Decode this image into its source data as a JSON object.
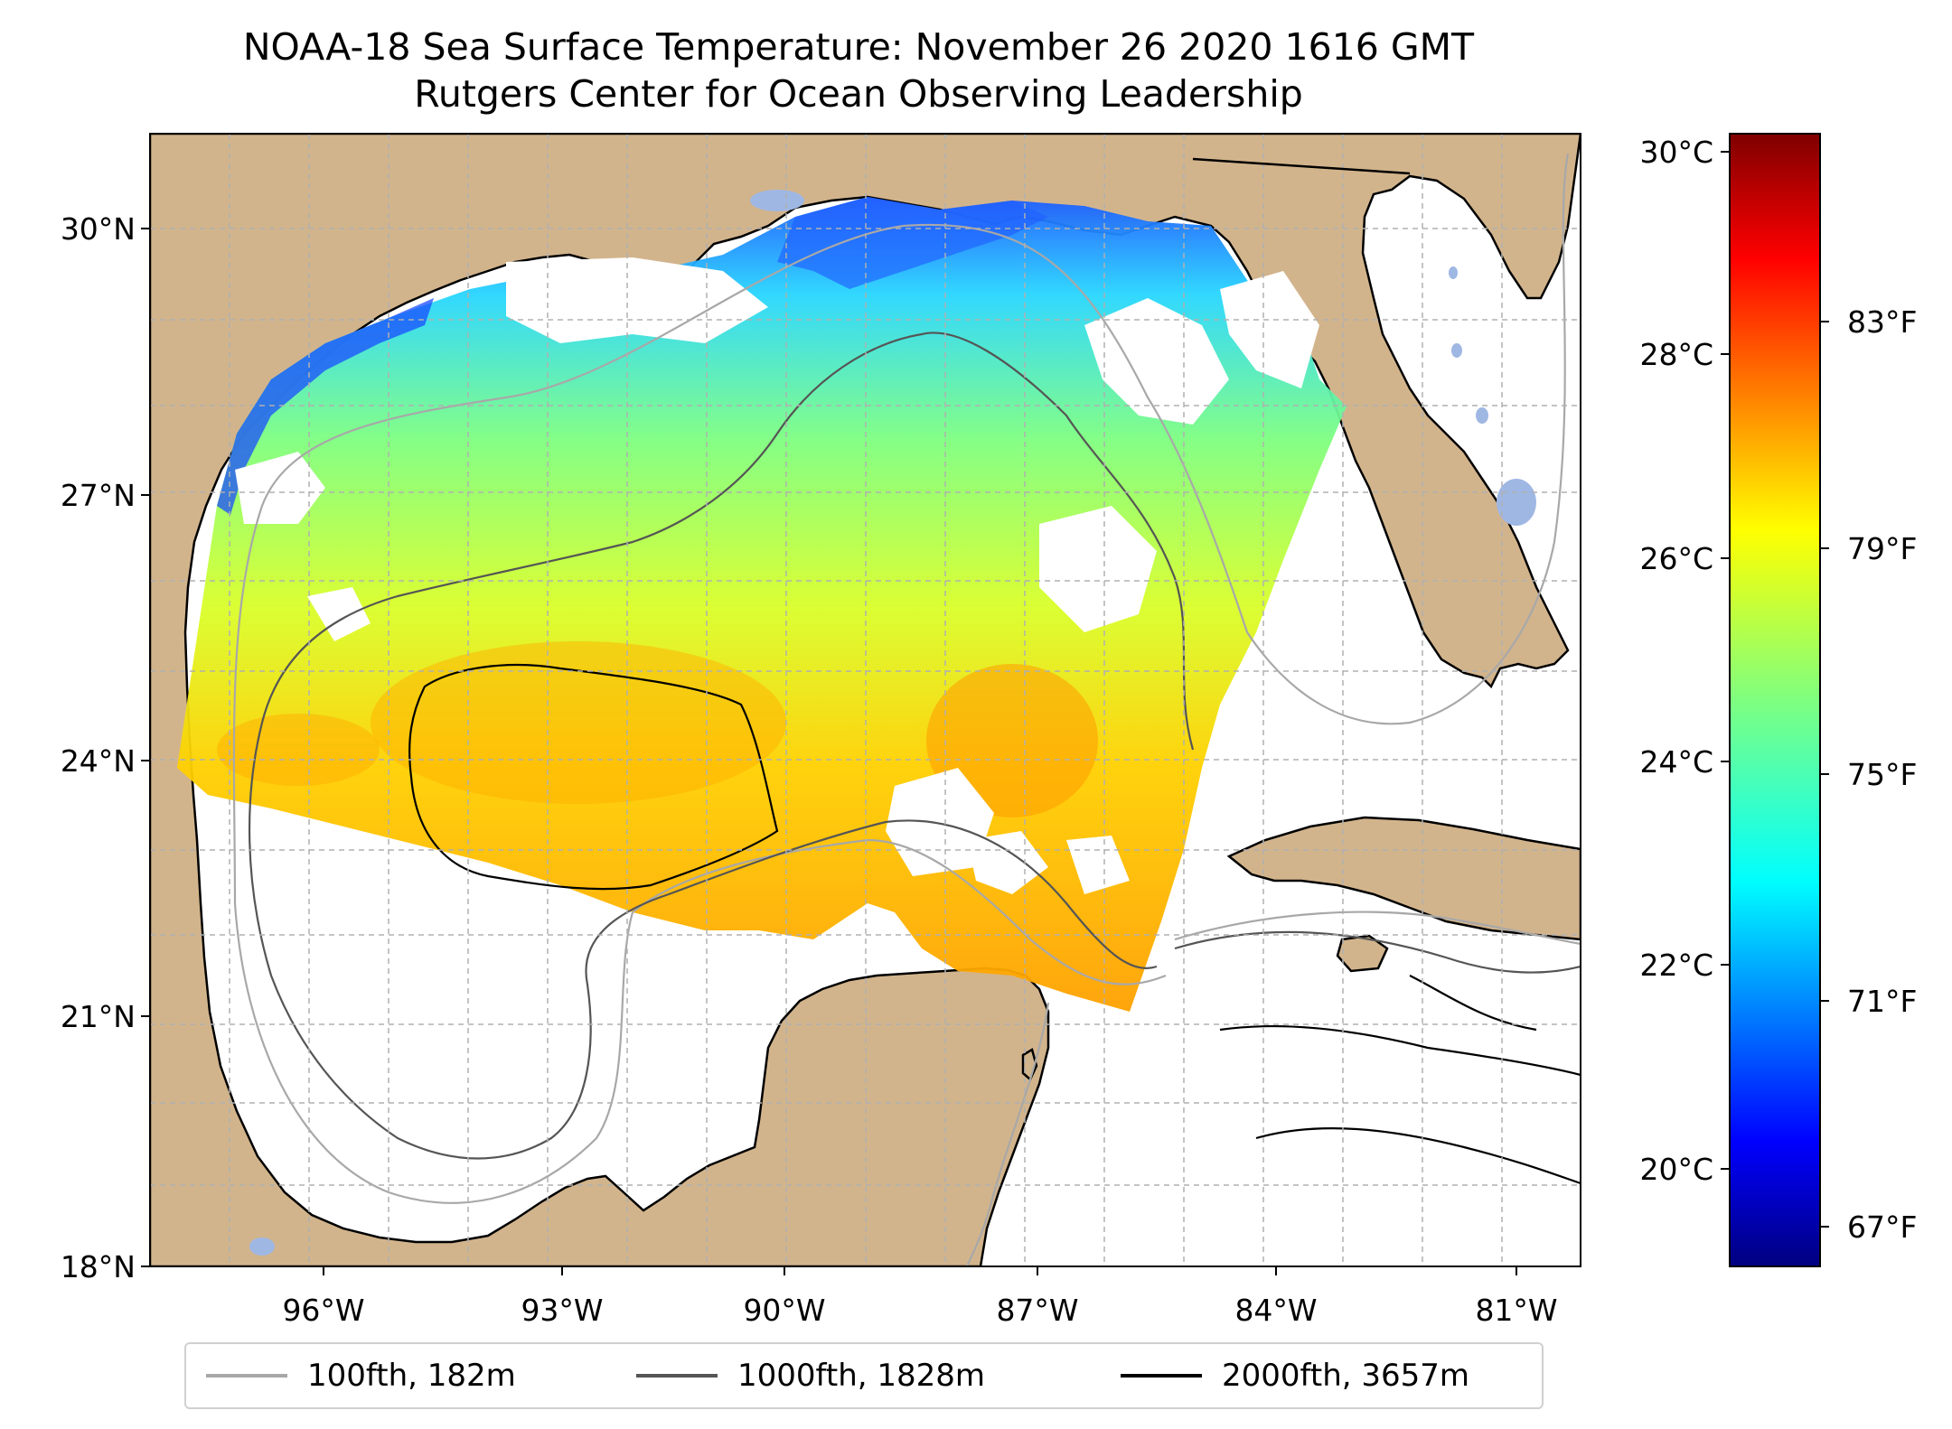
{
  "title": {
    "line1": "NOAA-18 Sea Surface Temperature: November 26 2020 1616 GMT",
    "line2": "Rutgers Center for Ocean Observing Leadership"
  },
  "map": {
    "lat_labels": [
      "30°N",
      "27°N",
      "24°N",
      "21°N",
      "18°N"
    ],
    "lon_labels": [
      "96°W",
      "93°W",
      "90°W",
      "87°W",
      "84°W",
      "81°W"
    ],
    "lat_range": [
      18,
      31.1
    ],
    "lon_range": [
      -98.3,
      -80.4
    ],
    "colors": {
      "land": "#d2b48c",
      "ocean_nodata": "#ffffff",
      "lakes": "#9fb7e3",
      "grid": "#b0b0b0"
    }
  },
  "colorbar": {
    "celsius_labels": [
      "30°C",
      "28°C",
      "26°C",
      "24°C",
      "22°C",
      "20°C"
    ],
    "fahrenheit_labels": [
      "83°F",
      "79°F",
      "75°F",
      "71°F",
      "67°F"
    ],
    "colormap": "jet",
    "range_celsius": [
      19.0,
      30.2
    ]
  },
  "legend": {
    "items": [
      {
        "label": "100fth, 182m",
        "color": "#a8a8a8"
      },
      {
        "label": "1000fth, 1828m",
        "color": "#555555"
      },
      {
        "label": "2000fth, 3657m",
        "color": "#000000"
      }
    ]
  }
}
